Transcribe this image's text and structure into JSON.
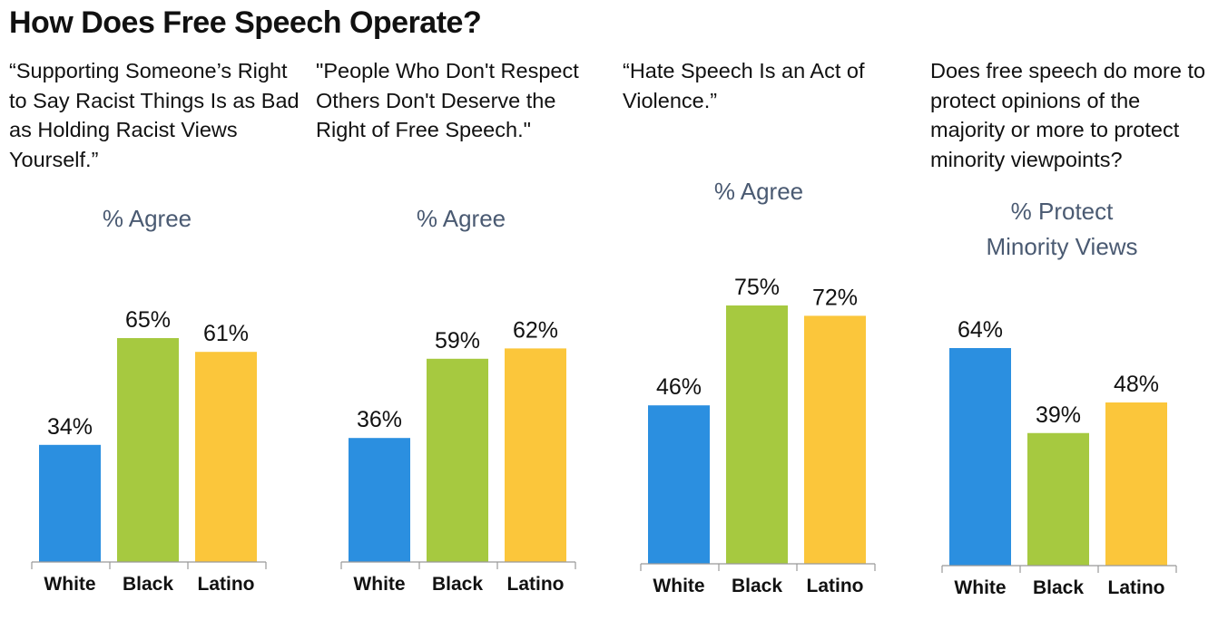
{
  "title": "How Does Free Speech Operate?",
  "colors": {
    "White": "#2b8fe0",
    "Black": "#a6c940",
    "Latino": "#fbc63b",
    "subtitle": "#4a5a72",
    "axis": "#999999"
  },
  "chart_data": [
    {
      "type": "bar",
      "question": "“Supporting Someone’s Right to Say Racist Things Is as Bad as Holding Racist Views Yourself.”",
      "subtitle": [
        "% Agree"
      ],
      "categories": [
        "White",
        "Black",
        "Latino"
      ],
      "values": [
        34,
        65,
        61
      ],
      "labels": [
        "34%",
        "65%",
        "61%"
      ],
      "ylim": [
        0,
        100
      ]
    },
    {
      "type": "bar",
      "question": "\"People Who Don't Respect Others Don't Deserve the Right of Free Speech.\"",
      "subtitle": [
        "% Agree"
      ],
      "categories": [
        "White",
        "Black",
        "Latino"
      ],
      "values": [
        36,
        59,
        62
      ],
      "labels": [
        "36%",
        "59%",
        "62%"
      ],
      "ylim": [
        0,
        100
      ]
    },
    {
      "type": "bar",
      "question": "“Hate Speech Is an Act of Violence.”",
      "subtitle": [
        "% Agree"
      ],
      "categories": [
        "White",
        "Black",
        "Latino"
      ],
      "values": [
        46,
        75,
        72
      ],
      "labels": [
        "46%",
        "75%",
        "72%"
      ],
      "ylim": [
        0,
        100
      ]
    },
    {
      "type": "bar",
      "question": "Does free speech do more to protect opinions of the majority or more to protect minority viewpoints?",
      "subtitle": [
        "% Protect",
        "Minority Views"
      ],
      "categories": [
        "White",
        "Black",
        "Latino"
      ],
      "values": [
        64,
        39,
        48
      ],
      "labels": [
        "64%",
        "39%",
        "48%"
      ],
      "ylim": [
        0,
        100
      ]
    }
  ]
}
